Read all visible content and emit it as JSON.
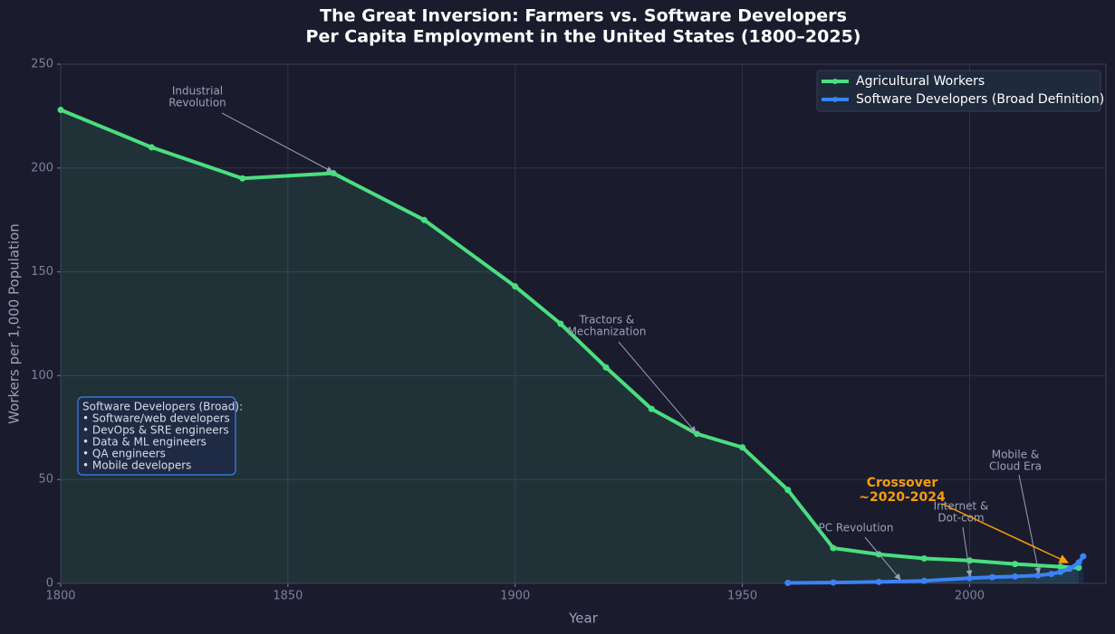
{
  "chart_data": {
    "type": "line",
    "title": "The Great Inversion: Farmers vs. Software Developers",
    "subtitle": "Per Capita Employment in the United States (1800–2025)",
    "x_label": "Year",
    "y_label": "Workers per 1,000 Population",
    "xlim": [
      1800,
      2030
    ],
    "ylim": [
      0,
      250
    ],
    "xticks": [
      1800,
      1850,
      1900,
      1950,
      2000
    ],
    "yticks": [
      0,
      50,
      100,
      150,
      200,
      250
    ],
    "grid": true,
    "legend": "upper right",
    "series": [
      {
        "name": "Agricultural Workers",
        "color": "#4ade80",
        "x": [
          1800,
          1820,
          1840,
          1860,
          1880,
          1900,
          1910,
          1920,
          1930,
          1940,
          1950,
          1960,
          1970,
          1980,
          1990,
          2000,
          2010,
          2020,
          2024
        ],
        "values": [
          228,
          210,
          195,
          197.5,
          175,
          143,
          125,
          104,
          84,
          72,
          65.5,
          45,
          17,
          14,
          12,
          11,
          9.3,
          8,
          7.5
        ]
      },
      {
        "name": "Software Developers (Broad Definition)",
        "color": "#3b82f6",
        "x": [
          1960,
          1970,
          1980,
          1990,
          2000,
          2005,
          2010,
          2015,
          2018,
          2020,
          2022,
          2024,
          2025
        ],
        "values": [
          0.2,
          0.4,
          0.7,
          1.2,
          2.5,
          3,
          3.3,
          3.8,
          4.5,
          5.5,
          7,
          10,
          13
        ]
      }
    ],
    "annotations": [
      {
        "lines": [
          "Industrial",
          "Revolution"
        ]
      },
      {
        "lines": [
          "Tractors &",
          "Mechanization"
        ]
      },
      {
        "lines": [
          "PC Revolution"
        ]
      },
      {
        "lines": [
          "Internet &",
          "Dot-com"
        ]
      },
      {
        "lines": [
          "Mobile &",
          "Cloud Era"
        ]
      },
      {
        "lines": [
          "Crossover",
          "~2020-2024"
        ]
      }
    ],
    "info_box": [
      "Software Developers (Broad):",
      "• Software/web developers",
      "• DevOps & SRE engineers",
      "• Data & ML engineers",
      "• QA engineers",
      "• Mobile developers"
    ]
  }
}
